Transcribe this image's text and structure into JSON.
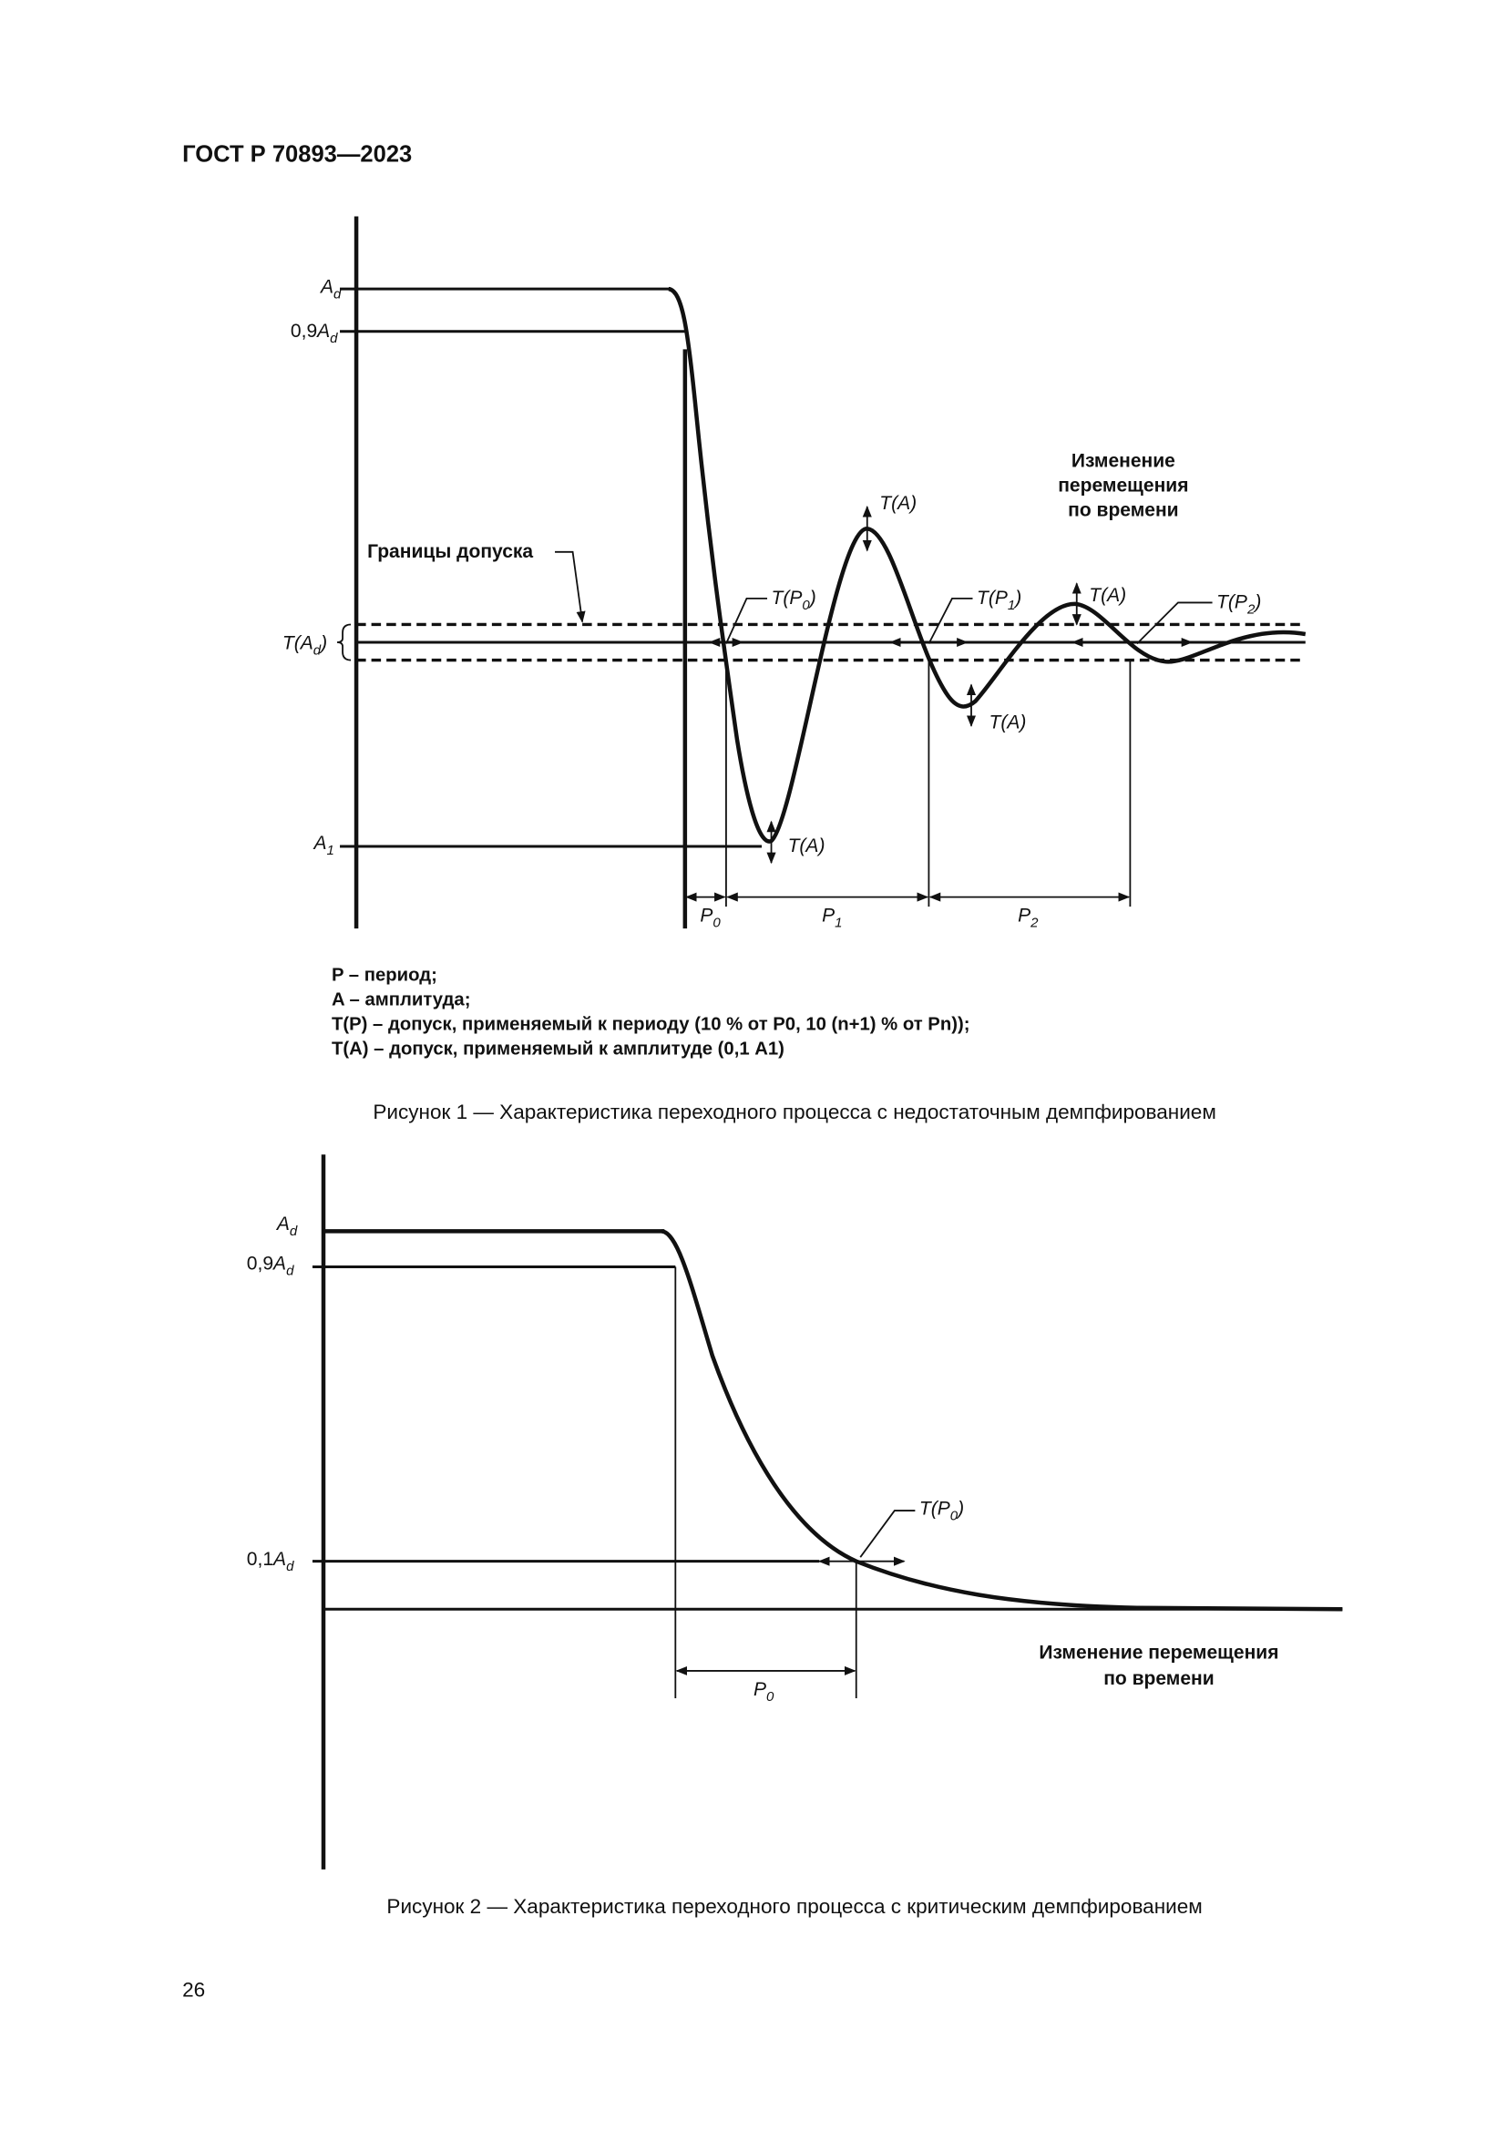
{
  "header": {
    "title": "ГОСТ Р 70893—2023"
  },
  "figure1": {
    "labels": {
      "ad": "A",
      "ad_sub": "d",
      "ad09_prefix": "0,9",
      "ad09": "A",
      "ad09_sub": "d",
      "tad_t": "T(",
      "tad_a": "A",
      "tad_sub": "d",
      "tad_close": ")",
      "a1": "A",
      "a1_sub": "1",
      "tolerance_bounds": "Границы допуска",
      "motion_title": [
        "Изменение",
        "перемещения",
        "по времени"
      ],
      "ta": "T(A)",
      "tp_prefix": "T(P",
      "tp_close": ")",
      "tp0_sub": "0",
      "tp1_sub": "1",
      "tp2_sub": "2",
      "p": "P",
      "p0_sub": "0",
      "p1_sub": "1",
      "p2_sub": "2"
    },
    "legend": [
      "P – период;",
      "A – амплитуда;",
      "T(P) – допуск, применяемый к периоду (10 % от P0, 10 (n+1) % от Pn));",
      "T(A) – допуск, применяемый к амплитуде (0,1 A1)"
    ],
    "caption": "Рисунок 1 — Характеристика переходного процесса с недостаточным демпфированием"
  },
  "figure2": {
    "labels": {
      "ad": "A",
      "ad_sub": "d",
      "ad09_prefix": "0,9",
      "ad09": "A",
      "ad09_sub": "d",
      "ad01_prefix": "0,1",
      "ad01": "A",
      "ad01_sub": "d",
      "tp0_prefix": "T(P",
      "tp0_sub": "0",
      "tp0_close": ")",
      "p": "P",
      "p0_sub": "0",
      "motion_title": [
        "Изменение перемещения",
        "по времени"
      ]
    },
    "caption": "Рисунок 2 — Характеристика переходного процесса с критическим демпфированием"
  },
  "page_number": "26"
}
